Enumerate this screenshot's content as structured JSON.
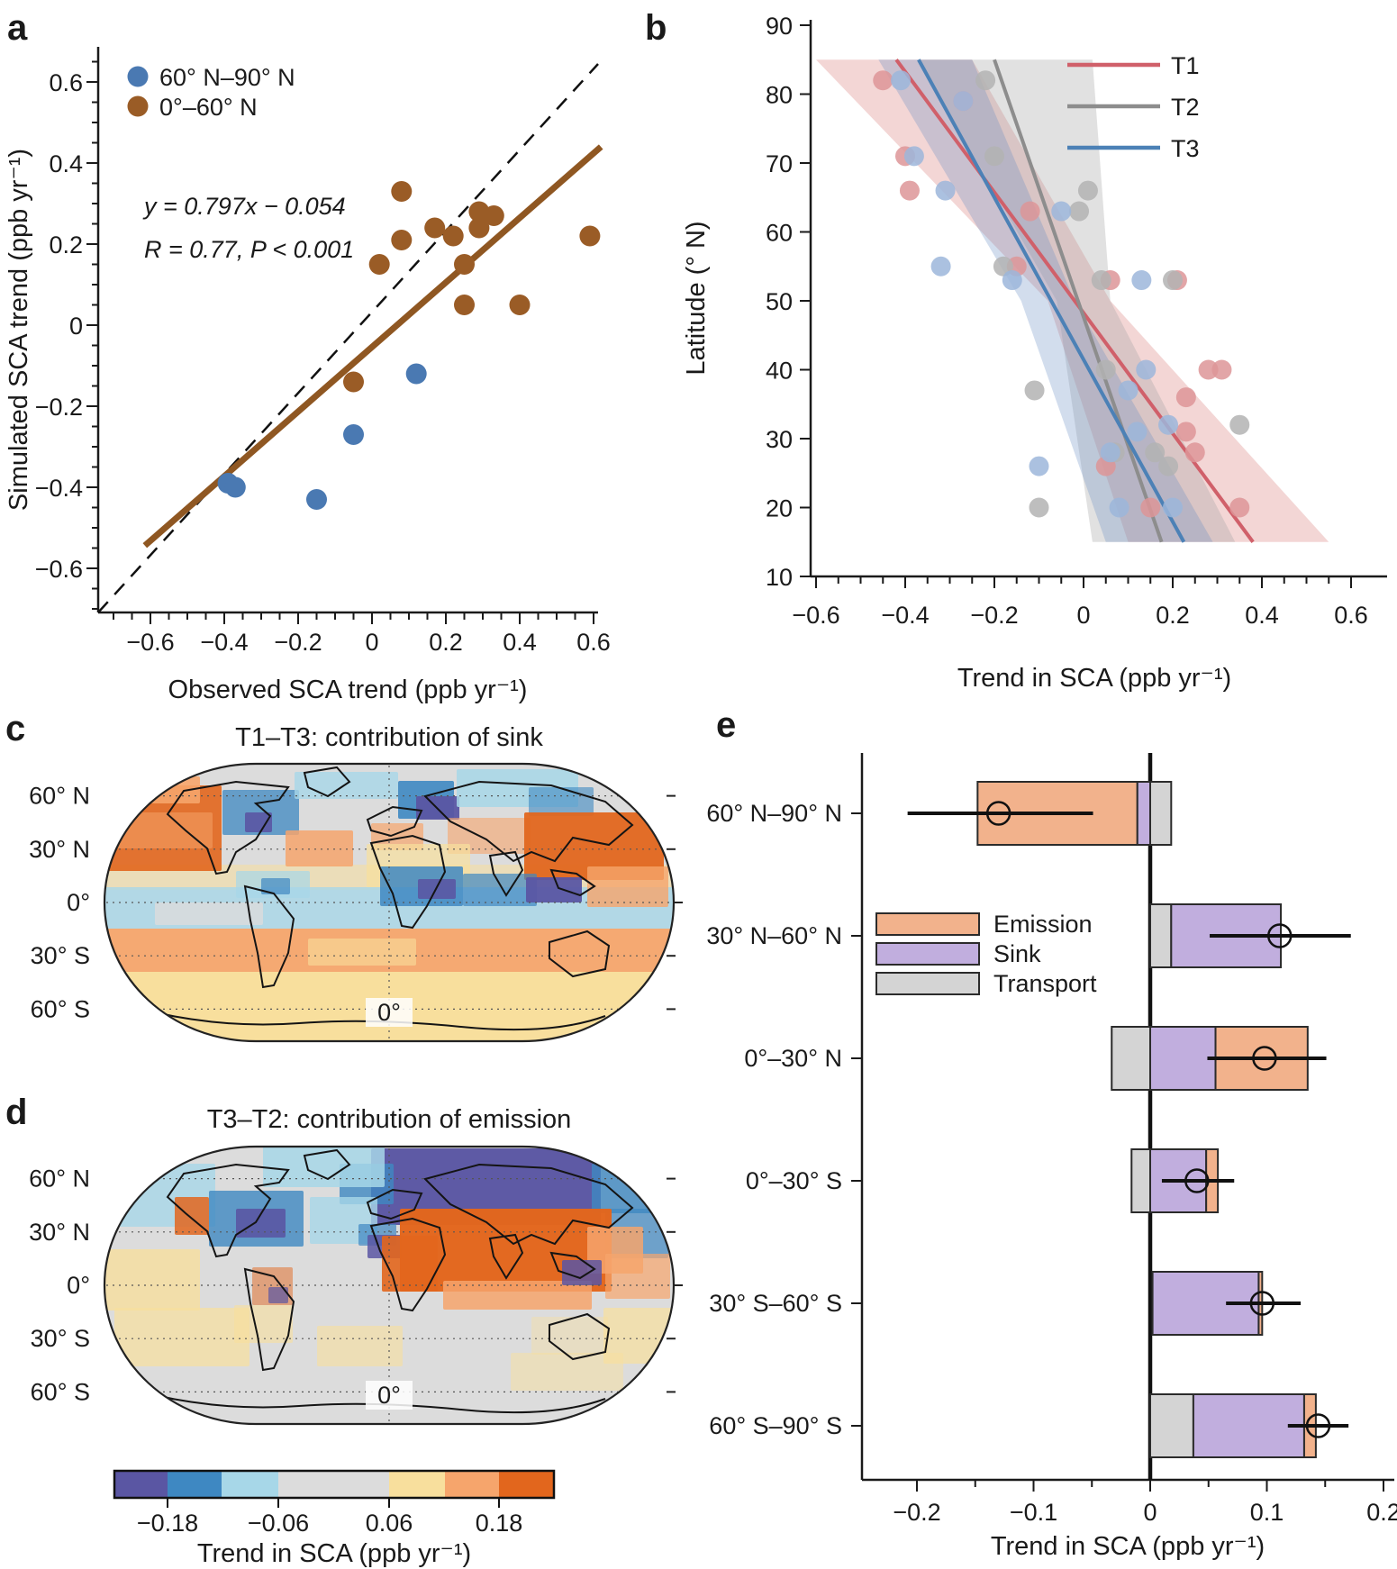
{
  "figure": {
    "panel_letters": {
      "a": "a",
      "b": "b",
      "c": "c",
      "d": "d",
      "e": "e"
    }
  },
  "chart_data": [
    {
      "panel": "a",
      "type": "scatter",
      "xlabel": "Observed SCA trend (ppb yr⁻¹)",
      "ylabel": "Simulated SCA trend (ppb yr⁻¹)",
      "xlim": [
        -0.74,
        0.75
      ],
      "ylim": [
        -0.71,
        0.73
      ],
      "xtick_values": [
        -0.6,
        -0.4,
        -0.2,
        0,
        0.2,
        0.4,
        0.6
      ],
      "xtick_labels": [
        "−0.6",
        "−0.4",
        "−0.2",
        "0",
        "0.2",
        "0.4",
        "0.6"
      ],
      "ytick_values": [
        -0.6,
        -0.4,
        -0.2,
        0,
        0.2,
        0.4,
        0.6
      ],
      "ytick_labels": [
        "−0.6",
        "−0.4",
        "−0.2",
        "0",
        "0.2",
        "0.4",
        "0.6"
      ],
      "identity_line": true,
      "fit_label_line1": "y = 0.797x − 0.054",
      "fit_label_line2": "R = 0.77, P < 0.001",
      "fit_line": {
        "x": [
          -0.615,
          0.62
        ],
        "y": [
          -0.544,
          0.44
        ],
        "color": "#8f5722"
      },
      "series": [
        {
          "name": "60° N–90° N",
          "color": "#4a79b2",
          "points": [
            [
              -0.39,
              -0.39
            ],
            [
              -0.37,
              -0.4
            ],
            [
              -0.15,
              -0.43
            ],
            [
              -0.05,
              -0.27
            ],
            [
              0.12,
              -0.12
            ]
          ]
        },
        {
          "name": "0°–60° N",
          "color": "#9a5c26",
          "points": [
            [
              -0.05,
              -0.14
            ],
            [
              0.02,
              0.15
            ],
            [
              0.08,
              0.33
            ],
            [
              0.08,
              0.21
            ],
            [
              0.17,
              0.24
            ],
            [
              0.22,
              0.22
            ],
            [
              0.25,
              0.15
            ],
            [
              0.25,
              0.05
            ],
            [
              0.29,
              0.28
            ],
            [
              0.29,
              0.24
            ],
            [
              0.33,
              0.27
            ],
            [
              0.4,
              0.05
            ],
            [
              0.59,
              0.22
            ]
          ]
        }
      ]
    },
    {
      "panel": "b",
      "type": "scatter",
      "xlabel": "Trend in SCA (ppb yr⁻¹)",
      "ylabel": "Latitude (° N)",
      "xtick_values": [
        -0.6,
        -0.4,
        -0.2,
        0,
        0.2,
        0.4,
        0.6
      ],
      "xtick_labels": [
        "−0.6",
        "−0.4",
        "−0.2",
        "0",
        "0.2",
        "0.4",
        "0.6"
      ],
      "ytick_values": [
        10,
        20,
        30,
        40,
        50,
        60,
        70,
        80,
        90
      ],
      "ytick_labels": [
        "10",
        "20",
        "30",
        "40",
        "50",
        "60",
        "70",
        "80",
        "90"
      ],
      "series": [
        {
          "name": "T1",
          "color": "#d0606a",
          "point_color": "#dd9598",
          "line": {
            "x": [
              -0.42,
              0.38
            ],
            "lat": [
              85,
              15
            ]
          },
          "band": {
            "top": [
              -0.6,
              -0.25
            ],
            "waist": [
              -0.08,
              0.06
            ],
            "bottom": [
              0.1,
              0.55
            ],
            "fill": "rgba(216,119,117,0.30)"
          },
          "points": [
            [
              -0.45,
              82
            ],
            [
              -0.27,
              79
            ],
            [
              -0.4,
              71
            ],
            [
              -0.39,
              66
            ],
            [
              -0.12,
              63
            ],
            [
              -0.15,
              55
            ],
            [
              0.06,
              53
            ],
            [
              0.21,
              53
            ],
            [
              0.28,
              40
            ],
            [
              0.31,
              40
            ],
            [
              0.23,
              36
            ],
            [
              0.23,
              31
            ],
            [
              0.25,
              28
            ],
            [
              0.05,
              26
            ],
            [
              0.15,
              20
            ],
            [
              0.35,
              20
            ]
          ]
        },
        {
          "name": "T2",
          "color": "#8d8d8d",
          "point_color": "#b3b3b3",
          "line": {
            "x": [
              -0.2,
              0.175
            ],
            "lat": [
              85,
              15
            ]
          },
          "band": {
            "top": [
              -0.37,
              0.02
            ],
            "waist": [
              -0.06,
              0.06
            ],
            "bottom": [
              0.02,
              0.34
            ],
            "fill": "rgba(165,165,165,0.33)"
          },
          "points": [
            [
              -0.22,
              82
            ],
            [
              -0.2,
              71
            ],
            [
              0.01,
              66
            ],
            [
              -0.01,
              63
            ],
            [
              -0.18,
              55
            ],
            [
              0.04,
              53
            ],
            [
              0.2,
              53
            ],
            [
              0.05,
              40
            ],
            [
              -0.11,
              37
            ],
            [
              0.35,
              32
            ],
            [
              0.07,
              28
            ],
            [
              0.16,
              28
            ],
            [
              0.19,
              26
            ],
            [
              -0.1,
              20
            ]
          ]
        },
        {
          "name": "T3",
          "color": "#4c81b6",
          "point_color": "#9cb6da",
          "line": {
            "x": [
              -0.37,
              0.225
            ],
            "lat": [
              85,
              15
            ]
          },
          "band": {
            "top": [
              -0.46,
              -0.25
            ],
            "waist": [
              -0.14,
              -0.02
            ],
            "bottom": [
              0.05,
              0.29
            ],
            "fill": "rgba(105,143,196,0.30)"
          },
          "points": [
            [
              -0.41,
              82
            ],
            [
              -0.27,
              79
            ],
            [
              -0.38,
              71
            ],
            [
              -0.31,
              66
            ],
            [
              -0.05,
              63
            ],
            [
              -0.32,
              55
            ],
            [
              -0.16,
              53
            ],
            [
              0.13,
              53
            ],
            [
              0.14,
              40
            ],
            [
              0.1,
              37
            ],
            [
              0.19,
              32
            ],
            [
              0.12,
              31
            ],
            [
              0.06,
              28
            ],
            [
              -0.1,
              26
            ],
            [
              0.08,
              20
            ],
            [
              0.2,
              20
            ]
          ]
        }
      ]
    },
    {
      "panel": "c",
      "type": "map",
      "title": "T1–T3: contribution of sink",
      "lat_labels": [
        "60° N",
        "30° N",
        "0°",
        "30° S",
        "60° S"
      ],
      "meridian_label": "0°",
      "patches": [
        [
          4,
          118,
          632,
          28,
          "Y",
          0.55
        ],
        [
          4,
          143,
          632,
          46,
          "LB",
          0.8
        ],
        [
          4,
          189,
          632,
          48,
          "LO",
          0.95
        ],
        [
          4,
          237,
          632,
          77,
          "Y",
          1
        ],
        [
          4,
          30,
          130,
          95,
          "O",
          0.9
        ],
        [
          30,
          20,
          80,
          30,
          "LO",
          0.9
        ],
        [
          135,
          35,
          85,
          50,
          "B",
          0.75
        ],
        [
          160,
          60,
          30,
          22,
          "P",
          0.9
        ],
        [
          215,
          15,
          115,
          30,
          "LB",
          0.8
        ],
        [
          205,
          80,
          75,
          40,
          "LO",
          0.85
        ],
        [
          330,
          25,
          62,
          42,
          "B",
          0.9
        ],
        [
          350,
          42,
          48,
          26,
          "P",
          0.95
        ],
        [
          395,
          12,
          135,
          42,
          "LB",
          0.85
        ],
        [
          475,
          32,
          72,
          32,
          "B",
          0.6
        ],
        [
          300,
          72,
          58,
          30,
          "LO",
          0.7
        ],
        [
          385,
          66,
          92,
          40,
          "LO",
          0.6
        ],
        [
          470,
          60,
          155,
          75,
          "O",
          0.95
        ],
        [
          540,
          120,
          90,
          45,
          "LO",
          0.8
        ],
        [
          295,
          95,
          115,
          48,
          "Y",
          0.7
        ],
        [
          310,
          120,
          92,
          44,
          "B",
          0.85
        ],
        [
          352,
          134,
          42,
          22,
          "P",
          0.9
        ],
        [
          402,
          128,
          82,
          36,
          "B",
          0.7
        ],
        [
          472,
          132,
          62,
          28,
          "P",
          0.95
        ],
        [
          150,
          125,
          82,
          30,
          "LB",
          0.7
        ],
        [
          178,
          133,
          32,
          18,
          "B",
          0.7
        ],
        [
          60,
          160,
          120,
          25,
          "G",
          0.8
        ],
        [
          230,
          200,
          120,
          30,
          "Y",
          0.6
        ],
        [
          4,
          60,
          120,
          40,
          "LO",
          0.5
        ]
      ]
    },
    {
      "panel": "d",
      "type": "map",
      "title": "T3–T2: contribution of emission",
      "lat_labels": [
        "60° N",
        "30° N",
        "0°",
        "30° S",
        "60° S"
      ],
      "meridian_label": "0°",
      "patches": [
        [
          300,
          8,
          255,
          85,
          "P",
          0.97
        ],
        [
          265,
          25,
          60,
          45,
          "B",
          0.8
        ],
        [
          545,
          25,
          80,
          55,
          "B",
          0.8
        ],
        [
          560,
          75,
          70,
          55,
          "B",
          0.7
        ],
        [
          2,
          25,
          125,
          70,
          "LB",
          0.8
        ],
        [
          180,
          6,
          135,
          45,
          "LB",
          0.85
        ],
        [
          120,
          55,
          105,
          62,
          "B",
          0.8
        ],
        [
          150,
          75,
          55,
          32,
          "P",
          0.9
        ],
        [
          82,
          62,
          38,
          42,
          "O",
          0.85
        ],
        [
          232,
          62,
          75,
          52,
          "LB",
          0.8
        ],
        [
          286,
          92,
          42,
          24,
          "B",
          0.7
        ],
        [
          296,
          104,
          38,
          26,
          "P",
          0.85
        ],
        [
          332,
          75,
          235,
          92,
          "O",
          0.98
        ],
        [
          312,
          105,
          62,
          62,
          "O",
          0.9
        ],
        [
          540,
          95,
          62,
          52,
          "LO",
          0.85
        ],
        [
          380,
          155,
          165,
          32,
          "LO",
          0.85
        ],
        [
          512,
          132,
          44,
          28,
          "P",
          0.85
        ],
        [
          560,
          125,
          72,
          50,
          "LO",
          0.7
        ],
        [
          2,
          120,
          108,
          68,
          "Y",
          0.8
        ],
        [
          15,
          185,
          150,
          65,
          "Y",
          0.7
        ],
        [
          240,
          205,
          95,
          45,
          "Y",
          0.6
        ],
        [
          558,
          185,
          75,
          62,
          "Y",
          0.7
        ],
        [
          455,
          235,
          125,
          42,
          "Y",
          0.5
        ],
        [
          168,
          140,
          45,
          42,
          "O",
          0.5
        ],
        [
          186,
          162,
          22,
          18,
          "P",
          0.7
        ],
        [
          148,
          182,
          65,
          42,
          "Y",
          0.6
        ],
        [
          478,
          195,
          85,
          42,
          "Y",
          0.4
        ]
      ]
    },
    {
      "type": "colorbar",
      "colors": [
        "#5a56a3",
        "#3e88c2",
        "#a7d7e8",
        "#dcdcdc",
        "#f8df9d",
        "#f6a56c",
        "#e2661d"
      ],
      "tick_labels": [
        "−0.18",
        "−0.06",
        "0.06",
        "0.18"
      ],
      "tick_boundary_indices": [
        1,
        3,
        4,
        6
      ],
      "label": "Trend in SCA (ppb yr⁻¹)"
    },
    {
      "panel": "e",
      "type": "bar",
      "xlabel": "Trend in SCA (ppb yr⁻¹)",
      "xtick_values": [
        -0.2,
        -0.1,
        0,
        0.1,
        0.2
      ],
      "xtick_labels": [
        "−0.2",
        "−0.1",
        "0",
        "0.1",
        "0.2"
      ],
      "legend": [
        {
          "key": "emission",
          "label": "Emission",
          "color": "#f2b28c"
        },
        {
          "key": "sink",
          "label": "Sink",
          "color": "#c1aede"
        },
        {
          "key": "transport",
          "label": "Transport",
          "color": "#d4d4d4"
        }
      ],
      "rows": [
        {
          "label": "60° N–90° N",
          "segments": [
            {
              "key": "emission",
              "from": -0.148,
              "to": -0.011
            },
            {
              "key": "sink",
              "from": -0.011,
              "to": 0
            },
            {
              "key": "transport",
              "from": 0,
              "to": 0.018
            }
          ],
          "net": -0.13,
          "ci": [
            -0.208,
            -0.049
          ]
        },
        {
          "label": "30° N–60° N",
          "segments": [
            {
              "key": "transport",
              "from": 0,
              "to": 0.018
            },
            {
              "key": "sink",
              "from": 0.018,
              "to": 0.112
            }
          ],
          "net": 0.111,
          "ci": [
            0.051,
            0.172
          ]
        },
        {
          "label": "0°–30° N",
          "segments": [
            {
              "key": "transport",
              "from": -0.033,
              "to": 0
            },
            {
              "key": "sink",
              "from": 0,
              "to": 0.056
            },
            {
              "key": "emission",
              "from": 0.056,
              "to": 0.135
            }
          ],
          "net": 0.098,
          "ci": [
            0.049,
            0.151
          ]
        },
        {
          "label": "0°–30° S",
          "segments": [
            {
              "key": "transport",
              "from": -0.016,
              "to": 0
            },
            {
              "key": "sink",
              "from": 0,
              "to": 0.048
            },
            {
              "key": "emission",
              "from": 0.048,
              "to": 0.058
            }
          ],
          "net": 0.04,
          "ci": [
            0.01,
            0.072
          ]
        },
        {
          "label": "30° S–60° S",
          "segments": [
            {
              "key": "sink",
              "from": 0.002,
              "to": 0.093
            },
            {
              "key": "emission",
              "from": 0.093,
              "to": 0.096
            }
          ],
          "net": 0.096,
          "ci": [
            0.065,
            0.129
          ]
        },
        {
          "label": "60° S–90° S",
          "segments": [
            {
              "key": "transport",
              "from": 0,
              "to": 0.037
            },
            {
              "key": "sink",
              "from": 0.037,
              "to": 0.132
            },
            {
              "key": "emission",
              "from": 0.132,
              "to": 0.142
            }
          ],
          "net": 0.144,
          "ci": [
            0.118,
            0.17
          ]
        }
      ],
      "map_palette": {
        "P": "#5a56a3",
        "B": "#3e88c2",
        "LB": "#a7d7e8",
        "G": "#dcdcdc",
        "Y": "#f8df9d",
        "LO": "#f6a56c",
        "O": "#e2661d"
      }
    }
  ]
}
